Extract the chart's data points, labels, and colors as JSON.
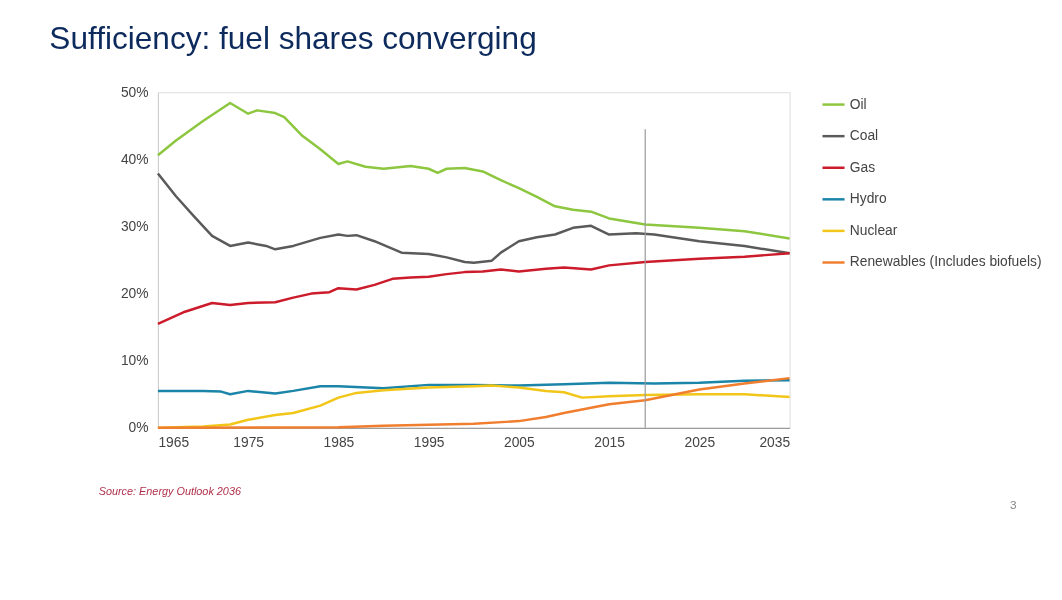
{
  "chart_data": {
    "type": "line",
    "title": "Sufficiency: fuel shares converging",
    "xlim": [
      1965,
      2035
    ],
    "xticks": [
      1965,
      1975,
      1985,
      1995,
      2005,
      2015,
      2025,
      2035
    ],
    "ylim": [
      0,
      50
    ],
    "yticks": [
      {
        "value": 0,
        "label": "0%"
      },
      {
        "value": 10,
        "label": "10%"
      },
      {
        "value": 20,
        "label": "20%"
      },
      {
        "value": 30,
        "label": "30%"
      },
      {
        "value": 40,
        "label": "40%"
      },
      {
        "value": 50,
        "label": "50%"
      }
    ],
    "grid": false,
    "legend": "right",
    "marker": "none",
    "line_style": "solid",
    "ref_lines": [
      {
        "axis": "x",
        "value": 2019,
        "color": "#999999"
      }
    ],
    "annotations": [
      "Source: Energy Outlook 2036",
      "3"
    ],
    "series": [
      {
        "name": "Oil",
        "color": "#8dc63f",
        "x": [
          1965,
          1967,
          1970,
          1973,
          1975,
          1976,
          1978,
          1979,
          1981,
          1983,
          1985,
          1986,
          1988,
          1990,
          1993,
          1995,
          1996,
          1997,
          1999,
          2001,
          2003,
          2005,
          2007,
          2009,
          2011,
          2013,
          2015,
          2019,
          2025,
          2030,
          2035
        ],
        "values": [
          40.6,
          42.8,
          45.7,
          48.4,
          46.8,
          47.3,
          46.9,
          46.3,
          43.5,
          41.5,
          39.3,
          39.7,
          38.9,
          38.6,
          39.0,
          38.6,
          38.0,
          38.6,
          38.7,
          38.2,
          36.9,
          35.7,
          34.4,
          33.0,
          32.5,
          32.2,
          31.2,
          30.3,
          29.8,
          29.3,
          28.2
        ]
      },
      {
        "name": "Coal",
        "color": "#5a5a5a",
        "x": [
          1965,
          1967,
          1969,
          1971,
          1973,
          1975,
          1977,
          1978,
          1980,
          1983,
          1985,
          1986,
          1987,
          1989,
          1992,
          1995,
          1997,
          1999,
          2000,
          2002,
          2003,
          2005,
          2007,
          2009,
          2011,
          2013,
          2015,
          2018,
          2020,
          2025,
          2030,
          2035
        ],
        "values": [
          37.9,
          34.5,
          31.5,
          28.6,
          27.1,
          27.6,
          27.1,
          26.6,
          27.1,
          28.3,
          28.8,
          28.6,
          28.7,
          27.8,
          26.1,
          25.9,
          25.4,
          24.7,
          24.6,
          24.9,
          26.1,
          27.8,
          28.4,
          28.8,
          29.8,
          30.1,
          28.8,
          29.0,
          28.8,
          27.8,
          27.1,
          26.0
        ]
      },
      {
        "name": "Gas",
        "color": "#cc1b2a",
        "x": [
          1965,
          1968,
          1971,
          1973,
          1975,
          1978,
          1980,
          1982,
          1984,
          1985,
          1987,
          1989,
          1991,
          1993,
          1995,
          1997,
          1999,
          2001,
          2003,
          2005,
          2008,
          2010,
          2013,
          2015,
          2019,
          2025,
          2030,
          2035
        ],
        "values": [
          15.5,
          17.3,
          18.6,
          18.3,
          18.6,
          18.7,
          19.4,
          20.0,
          20.2,
          20.8,
          20.6,
          21.3,
          22.2,
          22.4,
          22.5,
          22.9,
          23.2,
          23.3,
          23.6,
          23.3,
          23.7,
          23.9,
          23.6,
          24.2,
          24.7,
          25.2,
          25.5,
          26.0
        ]
      },
      {
        "name": "Hydro",
        "color": "#1a85a8",
        "x": [
          1965,
          1970,
          1972,
          1973,
          1975,
          1978,
          1980,
          1983,
          1985,
          1990,
          1995,
          2000,
          2005,
          2010,
          2015,
          2020,
          2025,
          2030,
          2035
        ],
        "values": [
          5.5,
          5.5,
          5.4,
          5.0,
          5.5,
          5.1,
          5.5,
          6.2,
          6.2,
          5.9,
          6.4,
          6.4,
          6.3,
          6.5,
          6.7,
          6.6,
          6.7,
          7.0,
          7.1
        ]
      },
      {
        "name": "Nuclear",
        "color": "#f2c618",
        "x": [
          1965,
          1970,
          1973,
          1975,
          1978,
          1980,
          1983,
          1985,
          1987,
          1990,
          1995,
          2000,
          2002,
          2005,
          2008,
          2010,
          2012,
          2015,
          2019,
          2025,
          2030,
          2035
        ],
        "values": [
          0,
          0.2,
          0.5,
          1.2,
          1.9,
          2.2,
          3.3,
          4.5,
          5.2,
          5.6,
          6.0,
          6.2,
          6.3,
          6.0,
          5.5,
          5.3,
          4.5,
          4.7,
          4.9,
          5.0,
          5.0,
          4.6
        ]
      },
      {
        "name": "Renewables (Includes biofuels)",
        "color": "#f07e2e",
        "x": [
          1965,
          1985,
          1990,
          2000,
          2005,
          2008,
          2010,
          2013,
          2015,
          2019,
          2025,
          2030,
          2035
        ],
        "values": [
          0,
          0.1,
          0.3,
          0.6,
          1.0,
          1.6,
          2.2,
          3.0,
          3.5,
          4.1,
          5.7,
          6.6,
          7.4
        ]
      }
    ]
  }
}
